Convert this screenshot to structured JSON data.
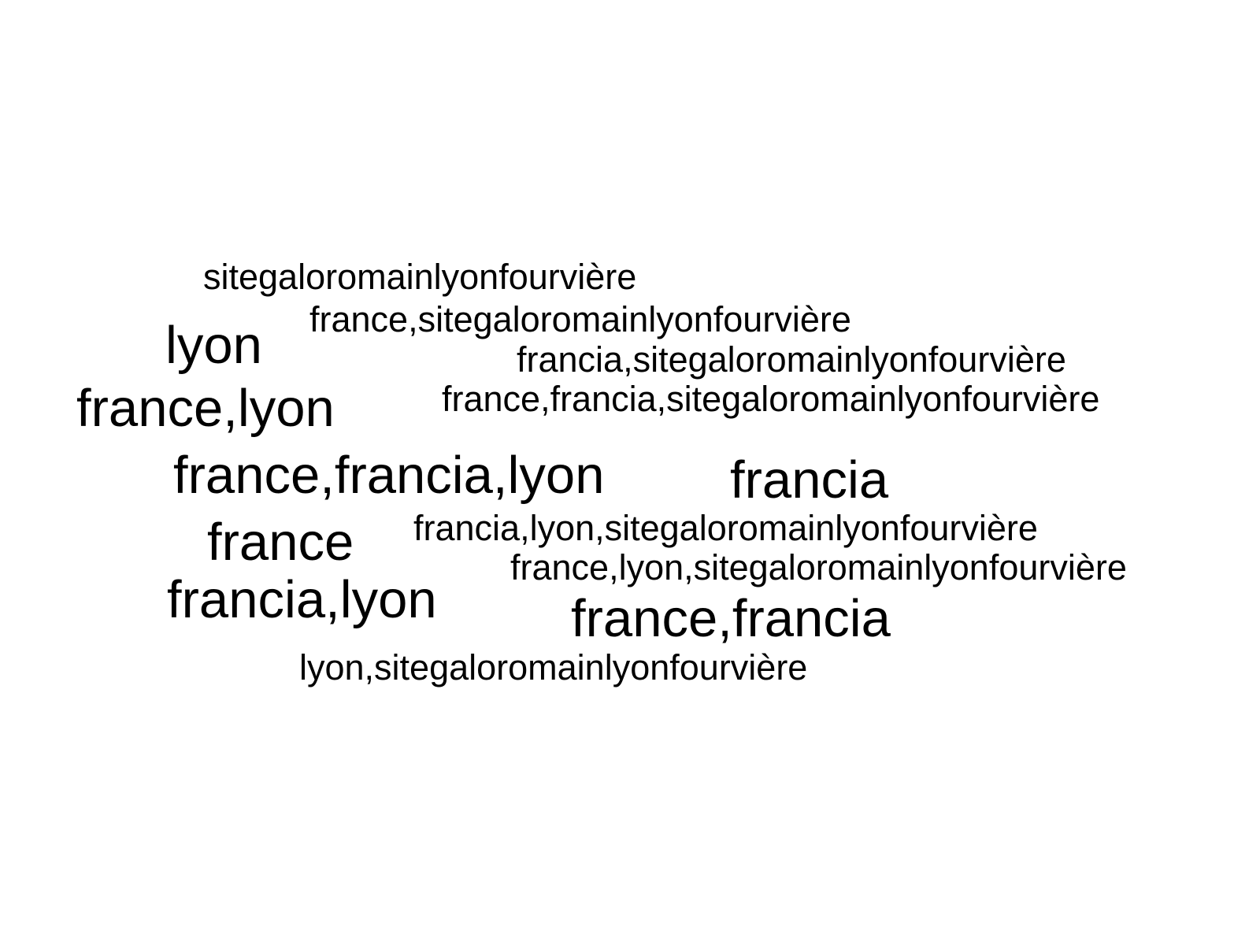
{
  "word_cloud": {
    "text_color": "#000000",
    "background_color": "#ffffff",
    "words": [
      "sitegaloromainlyonfourvière",
      "france,sitegaloromainlyonfourvière",
      "lyon",
      "francia,sitegaloromainlyonfourvière",
      "france,lyon",
      "france,francia,sitegaloromainlyonfourvière",
      "france,francia,lyon",
      "francia",
      "francia,lyon,sitegaloromainlyonfourvière",
      "france",
      "france,lyon,sitegaloromainlyonfourvière",
      "francia,lyon",
      "france,francia",
      "lyon,sitegaloromainlyonfourvière"
    ]
  }
}
